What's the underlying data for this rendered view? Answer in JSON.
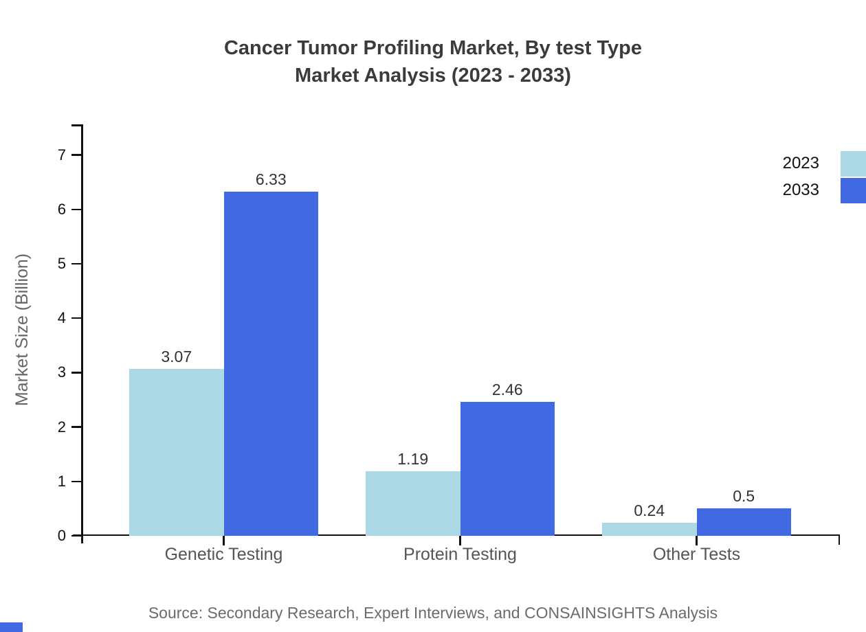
{
  "title": {
    "line1": "Cancer Tumor Profiling Market, By test Type",
    "line2": "Market Analysis (2023 - 2033)"
  },
  "source_note": "Source: Secondary Research, Expert Interviews, and CONSAINSIGHTS Analysis",
  "colors": {
    "series_2023": "#ADD8E6",
    "series_2033": "#4169E1",
    "axis": "#111111",
    "title_text": "#3b3b3b",
    "category_text": "#555555",
    "source_text": "#6b6b6b",
    "brand_mark": "#4169E1"
  },
  "chart_data": {
    "type": "bar",
    "title": "Cancer Tumor Profiling Market, By test Type — Market Analysis (2023 - 2033)",
    "categories": [
      "Genetic Testing",
      "Protein Testing",
      "Other Tests"
    ],
    "series": [
      {
        "name": "2023",
        "color": "#ADD8E6",
        "values": [
          3.07,
          1.19,
          0.24
        ]
      },
      {
        "name": "2033",
        "color": "#4169E1",
        "values": [
          6.33,
          2.46,
          0.5
        ]
      }
    ],
    "xlabel": "",
    "ylabel": "Market Size (Billion)",
    "ylim": [
      0,
      7.6
    ],
    "yticks": [
      0,
      1,
      2,
      3,
      4,
      5,
      6,
      7
    ],
    "grid": false,
    "legend_position": "top-right",
    "value_labels_shown": true
  }
}
